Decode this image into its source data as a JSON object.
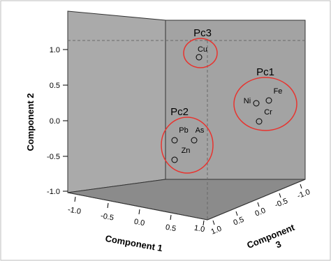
{
  "chart_data": {
    "type": "scatter",
    "title": "",
    "axes": {
      "x": {
        "label": "Component 1",
        "range": [
          -1.0,
          1.0
        ],
        "ticks": [
          "-1.0",
          "-0.5",
          "0.0",
          "0.5",
          "1.0"
        ]
      },
      "y": {
        "label": "Component 2",
        "range": [
          -1.0,
          1.0
        ],
        "ticks": [
          "1.0",
          "0.5",
          "0.0",
          "-0.5",
          "-1.0"
        ]
      },
      "z": {
        "label": "Component 3",
        "range": [
          -1.0,
          1.0
        ],
        "ticks": [
          "1.0",
          "0.5",
          "0.0",
          "-0.5",
          "-1.0"
        ]
      }
    },
    "points": [
      {
        "label": "Cu"
      },
      {
        "label": "Fe"
      },
      {
        "label": "Ni"
      },
      {
        "label": "Cr"
      },
      {
        "label": "Pb"
      },
      {
        "label": "As"
      },
      {
        "label": "Zn"
      }
    ],
    "groups": [
      {
        "label": "Pc3",
        "members": [
          "Cu"
        ]
      },
      {
        "label": "Pc1",
        "members": [
          "Fe",
          "Ni",
          "Cr"
        ]
      },
      {
        "label": "Pc2",
        "members": [
          "Pb",
          "As",
          "Zn"
        ]
      }
    ],
    "colors": {
      "back_wall": "#a3a3a3",
      "floor": "#8b8b8b",
      "group_circle": "#e8332e"
    }
  }
}
